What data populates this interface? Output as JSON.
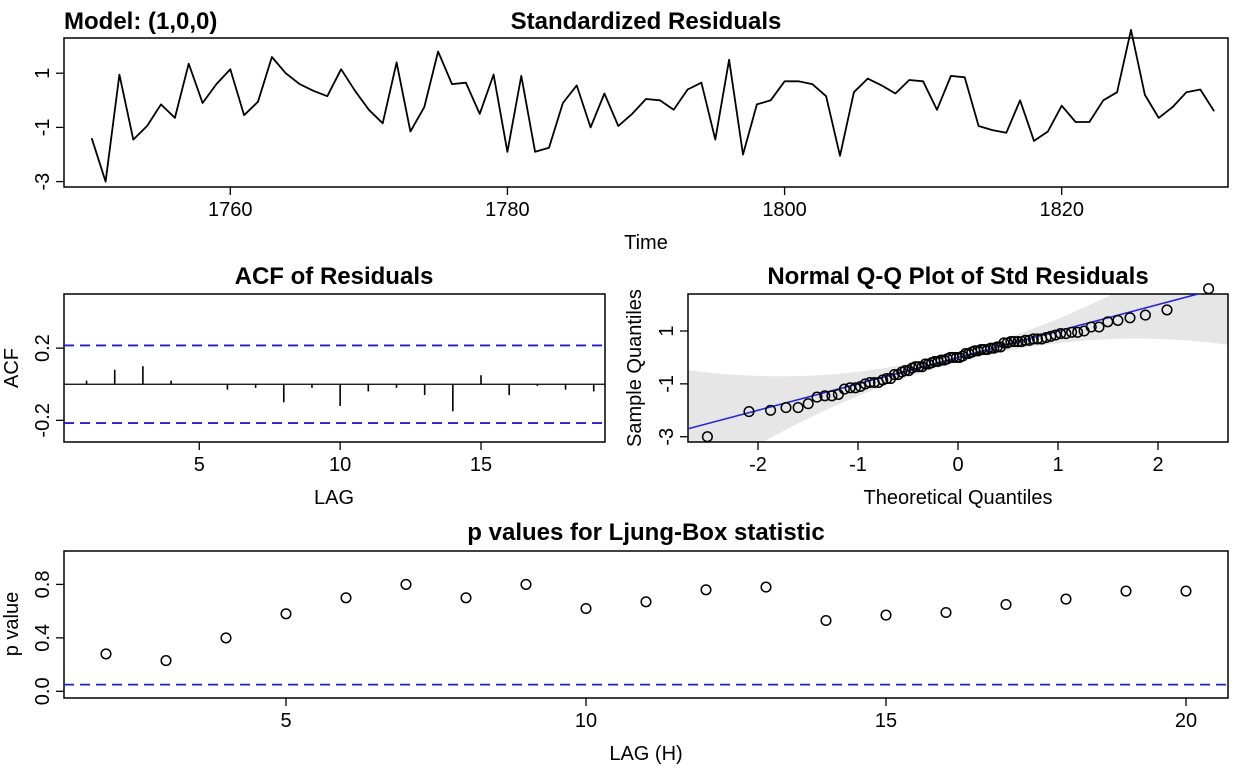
{
  "model_label": "Model: (1,0,0)",
  "chart_data": [
    {
      "id": "residuals",
      "type": "line",
      "title": "Standardized Residuals",
      "xlabel": "Time",
      "ylabel": "",
      "xlim": [
        1748,
        1832
      ],
      "ylim": [
        -3.2,
        2.3
      ],
      "xticks": [
        1760,
        1780,
        1800,
        1820
      ],
      "yticks": [
        -3,
        -1,
        1
      ],
      "x": [
        1750,
        1751,
        1752,
        1753,
        1754,
        1755,
        1756,
        1757,
        1758,
        1759,
        1760,
        1761,
        1762,
        1763,
        1764,
        1765,
        1766,
        1767,
        1768,
        1769,
        1770,
        1771,
        1772,
        1773,
        1774,
        1775,
        1776,
        1777,
        1778,
        1779,
        1780,
        1781,
        1782,
        1783,
        1784,
        1785,
        1786,
        1787,
        1788,
        1789,
        1790,
        1791,
        1792,
        1793,
        1794,
        1795,
        1796,
        1797,
        1798,
        1799,
        1800,
        1801,
        1802,
        1803,
        1804,
        1805,
        1806,
        1807,
        1808,
        1809,
        1810,
        1811,
        1812,
        1813,
        1814,
        1815,
        1816,
        1817,
        1818,
        1819,
        1820,
        1821,
        1822,
        1823,
        1824,
        1825,
        1826,
        1827,
        1828,
        1829,
        1830,
        1831
      ],
      "values": [
        -1.4,
        -3.0,
        0.95,
        -1.45,
        -0.95,
        -0.15,
        -0.65,
        1.35,
        -0.1,
        0.6,
        1.15,
        -0.55,
        -0.05,
        1.6,
        1.0,
        0.6,
        0.35,
        0.15,
        1.15,
        0.35,
        -0.35,
        -0.85,
        1.4,
        -1.15,
        -0.25,
        1.8,
        0.6,
        0.65,
        -0.5,
        0.95,
        -1.9,
        0.9,
        -1.9,
        -1.75,
        -0.1,
        0.55,
        -1.0,
        0.25,
        -0.95,
        -0.5,
        0.05,
        0.0,
        -0.35,
        0.4,
        0.65,
        -1.45,
        1.5,
        -2.0,
        -0.15,
        0.0,
        0.7,
        0.7,
        0.6,
        0.15,
        -2.05,
        0.3,
        0.8,
        0.55,
        0.25,
        0.75,
        0.7,
        -0.35,
        0.9,
        0.85,
        -0.95,
        -1.1,
        -1.2,
        0.0,
        -1.5,
        -1.15,
        -0.2,
        -0.8,
        -0.8,
        0.0,
        0.3,
        2.6,
        0.2,
        -0.65,
        -0.25,
        0.3,
        0.4,
        -0.4
      ],
      "color": "#000000"
    },
    {
      "id": "acf",
      "type": "bar",
      "title": "ACF of Residuals",
      "xlabel": "LAG",
      "ylabel": "ACF",
      "xlim": [
        0.2,
        19.4
      ],
      "ylim": [
        -0.32,
        0.5
      ],
      "xticks": [
        5,
        10,
        15
      ],
      "yticks": [
        -0.2,
        0.2
      ],
      "lags": [
        1,
        2,
        3,
        4,
        5,
        6,
        7,
        8,
        9,
        10,
        11,
        12,
        13,
        14,
        15,
        16,
        17,
        18,
        19
      ],
      "values": [
        0.02,
        0.08,
        0.1,
        0.02,
        0.0,
        -0.03,
        -0.02,
        -0.1,
        -0.02,
        -0.12,
        -0.04,
        -0.02,
        -0.06,
        -0.15,
        0.05,
        -0.06,
        -0.01,
        -0.03,
        -0.04
      ],
      "conf_band": [
        -0.215,
        0.215
      ],
      "band_color": "#1f1fd8"
    },
    {
      "id": "qq",
      "type": "scatter",
      "title": "Normal Q-Q Plot of Std Residuals",
      "xlabel": "Theoretical Quantiles",
      "ylabel": "Sample Quantiles",
      "xlim": [
        -2.7,
        2.7
      ],
      "ylim": [
        -3.2,
        2.4
      ],
      "xticks": [
        -2,
        -1,
        0,
        1,
        2
      ],
      "yticks": [
        -3,
        -1,
        1
      ],
      "line_color": "#2424e0",
      "band_color": "#e6e6e6"
    },
    {
      "id": "ljungbox",
      "type": "scatter",
      "title": "p values for Ljung-Box statistic",
      "xlabel": "LAG (H)",
      "ylabel": "p value",
      "xlim": [
        1.3,
        20.7
      ],
      "ylim": [
        -0.05,
        1.05
      ],
      "xticks": [
        5,
        10,
        15,
        20
      ],
      "yticks": [
        0.0,
        0.4,
        0.8
      ],
      "lags": [
        2,
        3,
        4,
        5,
        6,
        7,
        8,
        9,
        10,
        11,
        12,
        13,
        14,
        15,
        16,
        17,
        18,
        19,
        20
      ],
      "values": [
        0.28,
        0.23,
        0.4,
        0.58,
        0.7,
        0.8,
        0.7,
        0.8,
        0.62,
        0.67,
        0.76,
        0.78,
        0.53,
        0.57,
        0.59,
        0.65,
        0.69,
        0.75,
        0.75
      ],
      "threshold": 0.05,
      "threshold_color": "#1f1fd8"
    }
  ]
}
